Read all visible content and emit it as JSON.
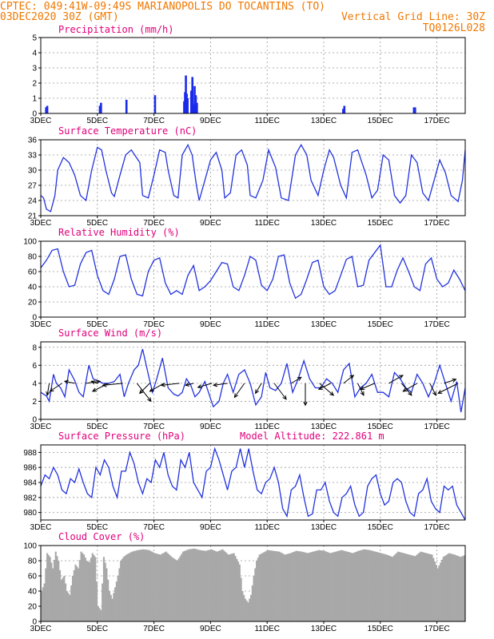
{
  "header": {
    "line1": "CPTEC:   049:41W-09:49S  MARIANOPOLIS DO TOCANTINS (TO)",
    "line2_left": "03DEC2020 30Z (GMT)",
    "line2_right": "Vertical Grid Line: 30Z",
    "line3_right": "TQ0126L028"
  },
  "colors": {
    "header": "#f07800",
    "title": "#e0007a",
    "curve": "#2233dd",
    "bars": "#1a2bea",
    "cloud": "#a8a8a8"
  },
  "x_axis": {
    "labels": [
      "3DEC",
      "5DEC",
      "7DEC",
      "9DEC",
      "11DEC",
      "13DEC",
      "15DEC",
      "17DEC"
    ],
    "label_days": [
      3,
      5,
      7,
      9,
      11,
      13,
      15,
      17
    ],
    "range_days": [
      3,
      18
    ]
  },
  "chart_data": [
    {
      "type": "bar",
      "title": "Precipitation (mm/h)",
      "ylim": [
        0,
        5
      ],
      "yticks": [
        0,
        1,
        2,
        3,
        4,
        5
      ],
      "grid": true,
      "x_days": [
        3.18,
        3.22,
        5.08,
        5.12,
        6.02,
        7.03,
        8.06,
        8.09,
        8.12,
        8.15,
        8.18,
        8.31,
        8.35,
        8.39,
        8.43,
        8.47,
        8.51,
        13.68,
        13.72,
        16.18,
        16.22
      ],
      "values": [
        0.4,
        0.5,
        0.5,
        0.7,
        0.9,
        1.2,
        0.8,
        1.4,
        2.5,
        1.3,
        1.0,
        1.5,
        2.4,
        0.6,
        1.8,
        1.2,
        0.7,
        0.3,
        0.5,
        0.4,
        0.4
      ]
    },
    {
      "type": "line",
      "title": "Surface Temperature (nC)",
      "ylim": [
        21,
        36
      ],
      "yticks": [
        21,
        24,
        27,
        30,
        33,
        36
      ],
      "grid": true,
      "x_days": [
        3.0,
        3.1,
        3.2,
        3.35,
        3.5,
        3.6,
        3.8,
        4.0,
        4.2,
        4.4,
        4.6,
        4.8,
        5.0,
        5.15,
        5.3,
        5.5,
        5.6,
        5.8,
        6.0,
        6.2,
        6.5,
        6.6,
        6.8,
        7.0,
        7.2,
        7.4,
        7.5,
        7.7,
        7.85,
        8.0,
        8.2,
        8.35,
        8.5,
        8.6,
        8.8,
        9.0,
        9.2,
        9.4,
        9.5,
        9.7,
        9.9,
        10.1,
        10.3,
        10.4,
        10.6,
        10.85,
        11.05,
        11.3,
        11.5,
        11.75,
        12.0,
        12.2,
        12.4,
        12.55,
        12.8,
        13.0,
        13.2,
        13.35,
        13.6,
        13.8,
        14.0,
        14.2,
        14.5,
        14.7,
        14.9,
        15.1,
        15.3,
        15.5,
        15.7,
        15.9,
        16.1,
        16.3,
        16.5,
        16.7,
        16.9,
        17.1,
        17.3,
        17.5,
        17.75,
        17.9,
        18.0
      ],
      "values": [
        25.0,
        24.5,
        22.3,
        21.8,
        25.0,
        30.0,
        32.5,
        31.5,
        29.0,
        25.0,
        24.0,
        30.0,
        34.5,
        34.0,
        30.0,
        25.5,
        24.8,
        29.0,
        33.0,
        34.0,
        31.5,
        25.0,
        24.5,
        29.0,
        34.0,
        33.5,
        30.0,
        25.0,
        24.5,
        33.0,
        35.0,
        33.0,
        27.0,
        24.0,
        28.0,
        32.0,
        33.5,
        30.0,
        24.5,
        25.5,
        33.0,
        34.0,
        31.0,
        25.0,
        24.5,
        28.0,
        34.0,
        30.5,
        24.5,
        24.0,
        33.0,
        35.0,
        33.0,
        28.0,
        25.0,
        30.0,
        34.0,
        32.5,
        27.0,
        24.5,
        33.5,
        34.0,
        29.0,
        24.5,
        26.0,
        33.0,
        32.0,
        25.0,
        23.5,
        25.0,
        33.0,
        31.5,
        25.5,
        24.0,
        28.0,
        32.0,
        29.5,
        25.0,
        23.8,
        28.0,
        34.0
      ]
    },
    {
      "type": "line",
      "title": "Relative Humidity (%)",
      "ylim": [
        0,
        100
      ],
      "yticks": [
        0,
        20,
        40,
        60,
        80,
        100
      ],
      "grid": true,
      "x_days": [
        3.0,
        3.2,
        3.4,
        3.6,
        3.8,
        4.0,
        4.2,
        4.4,
        4.6,
        4.8,
        5.0,
        5.2,
        5.4,
        5.6,
        5.8,
        6.0,
        6.2,
        6.4,
        6.6,
        6.8,
        7.0,
        7.2,
        7.4,
        7.6,
        7.8,
        8.0,
        8.2,
        8.4,
        8.6,
        8.8,
        9.0,
        9.2,
        9.4,
        9.6,
        9.8,
        10.0,
        10.2,
        10.4,
        10.6,
        10.8,
        11.0,
        11.2,
        11.4,
        11.6,
        11.8,
        12.0,
        12.2,
        12.4,
        12.6,
        12.8,
        13.0,
        13.2,
        13.4,
        13.6,
        13.8,
        14.0,
        14.2,
        14.4,
        14.6,
        14.8,
        15.0,
        15.2,
        15.4,
        15.6,
        15.8,
        16.0,
        16.2,
        16.4,
        16.6,
        16.8,
        17.0,
        17.2,
        17.4,
        17.6,
        17.8,
        18.0
      ],
      "values": [
        65,
        75,
        88,
        90,
        60,
        40,
        42,
        70,
        85,
        88,
        55,
        35,
        30,
        50,
        80,
        82,
        50,
        30,
        28,
        60,
        75,
        78,
        45,
        30,
        35,
        30,
        55,
        68,
        35,
        40,
        48,
        60,
        72,
        70,
        40,
        35,
        55,
        80,
        75,
        42,
        35,
        50,
        80,
        82,
        45,
        25,
        30,
        50,
        72,
        75,
        40,
        30,
        35,
        55,
        76,
        80,
        40,
        42,
        75,
        85,
        95,
        40,
        40,
        62,
        78,
        60,
        40,
        35,
        70,
        78,
        50,
        40,
        45,
        62,
        50,
        35
      ]
    },
    {
      "type": "line",
      "title": "Surface Wind (m/s)",
      "ylim": [
        0,
        8.6
      ],
      "yticks": [
        0,
        2,
        4,
        6,
        8
      ],
      "grid": true,
      "x_days": [
        3.0,
        3.2,
        3.3,
        3.45,
        3.55,
        3.7,
        3.85,
        4.0,
        4.2,
        4.35,
        4.5,
        4.7,
        4.85,
        5.0,
        5.2,
        5.4,
        5.6,
        5.8,
        5.95,
        6.1,
        6.3,
        6.45,
        6.6,
        6.8,
        6.95,
        7.1,
        7.3,
        7.5,
        7.7,
        7.85,
        8.0,
        8.15,
        8.3,
        8.45,
        8.6,
        8.8,
        9.0,
        9.1,
        9.3,
        9.45,
        9.6,
        9.8,
        10.0,
        10.2,
        10.4,
        10.6,
        10.8,
        10.95,
        11.1,
        11.3,
        11.5,
        11.7,
        11.9,
        12.1,
        12.3,
        12.5,
        12.7,
        12.9,
        13.1,
        13.3,
        13.5,
        13.7,
        13.9,
        14.1,
        14.3,
        14.5,
        14.7,
        14.9,
        15.1,
        15.3,
        15.5,
        15.7,
        15.9,
        16.1,
        16.3,
        16.5,
        16.7,
        16.9,
        17.1,
        17.3,
        17.5,
        17.7,
        17.85,
        18.0
      ],
      "values": [
        3.0,
        2.6,
        2.0,
        5.0,
        4.0,
        3.5,
        2.5,
        5.5,
        4.3,
        3.0,
        2.5,
        6.0,
        4.5,
        4.3,
        4.0,
        4.0,
        4.2,
        5.0,
        2.5,
        4.0,
        5.5,
        6.0,
        7.8,
        5.0,
        3.0,
        4.5,
        6.8,
        3.5,
        2.8,
        2.6,
        3.0,
        4.5,
        3.8,
        2.5,
        3.0,
        4.2,
        2.3,
        1.4,
        2.0,
        4.0,
        5.0,
        3.0,
        5.0,
        5.5,
        4.0,
        1.6,
        2.5,
        5.2,
        3.5,
        3.2,
        4.0,
        6.2,
        3.0,
        4.5,
        6.5,
        4.5,
        3.5,
        3.5,
        4.5,
        4.0,
        3.0,
        5.5,
        6.2,
        2.5,
        3.5,
        4.0,
        5.0,
        3.0,
        3.0,
        2.5,
        5.2,
        4.5,
        3.5,
        3.0,
        5.0,
        4.0,
        2.5,
        4.0,
        6.0,
        4.0,
        2.0,
        4.2,
        0.8,
        3.5
      ],
      "vector_x_days": [
        3.3,
        3.75,
        4.2,
        4.6,
        5.0,
        5.4,
        5.9,
        6.4,
        6.85,
        7.35,
        7.9,
        8.4,
        9.05,
        9.6,
        10.2,
        10.8,
        11.25,
        11.85,
        12.35,
        12.85,
        13.25,
        13.7,
        14.2,
        14.8,
        15.3,
        15.75,
        16.3,
        16.75,
        17.25,
        17.75
      ],
      "vector_u": [
        -0.5,
        -3.0,
        -2.5,
        3.5,
        -1.5,
        -4.0,
        -5.0,
        3.5,
        -2.5,
        -3.5,
        -4.5,
        -2.0,
        -3.5,
        -3.5,
        -2.5,
        -1.5,
        3.0,
        2.5,
        0.0,
        3.5,
        -3.0,
        2.5,
        1.5,
        -3.5,
        3.5,
        2.5,
        -3.5,
        1.5,
        3.0,
        -5.0
      ],
      "vector_v": [
        -3.0,
        -2.0,
        0.5,
        0.5,
        0.5,
        -2.0,
        -0.5,
        -4.5,
        -2.5,
        -2.0,
        -0.5,
        -0.5,
        -1.0,
        -0.5,
        -3.5,
        -2.5,
        -4.0,
        1.5,
        -5.5,
        -3.0,
        -1.5,
        2.0,
        -3.0,
        -1.5,
        2.0,
        -3.0,
        -2.0,
        -3.0,
        1.0,
        -2.5
      ]
    },
    {
      "type": "line",
      "title": "Surface Pressure (hPa)",
      "annotation": "Model Altitude: 222.861 m",
      "ylim": [
        979,
        989
      ],
      "yticks": [
        980,
        982,
        984,
        986,
        988
      ],
      "grid": true,
      "x_days": [
        3.0,
        3.15,
        3.3,
        3.45,
        3.6,
        3.75,
        3.9,
        4.05,
        4.2,
        4.35,
        4.5,
        4.65,
        4.8,
        4.95,
        5.1,
        5.25,
        5.4,
        5.55,
        5.7,
        5.85,
        6.0,
        6.15,
        6.3,
        6.45,
        6.6,
        6.75,
        6.9,
        7.05,
        7.2,
        7.35,
        7.5,
        7.65,
        7.8,
        7.95,
        8.1,
        8.25,
        8.4,
        8.55,
        8.7,
        8.85,
        9.0,
        9.15,
        9.3,
        9.45,
        9.6,
        9.75,
        9.9,
        10.05,
        10.2,
        10.35,
        10.5,
        10.65,
        10.8,
        10.95,
        11.1,
        11.25,
        11.4,
        11.55,
        11.7,
        11.85,
        12.0,
        12.15,
        12.3,
        12.45,
        12.6,
        12.75,
        12.9,
        13.05,
        13.2,
        13.35,
        13.5,
        13.65,
        13.8,
        13.95,
        14.1,
        14.25,
        14.4,
        14.55,
        14.7,
        14.85,
        15.0,
        15.15,
        15.3,
        15.45,
        15.6,
        15.75,
        15.9,
        16.05,
        16.2,
        16.35,
        16.5,
        16.65,
        16.8,
        16.95,
        17.1,
        17.25,
        17.4,
        17.55,
        17.7,
        17.85,
        18.0
      ],
      "values": [
        983.5,
        985.0,
        984.5,
        986.0,
        985.0,
        983.0,
        982.5,
        984.5,
        984.0,
        985.8,
        984.0,
        982.5,
        982.0,
        986.0,
        985.0,
        987.0,
        986.0,
        983.5,
        982.0,
        985.5,
        985.5,
        988.0,
        986.5,
        984.0,
        982.5,
        984.5,
        984.0,
        987.0,
        986.0,
        988.0,
        985.0,
        983.5,
        983.0,
        987.0,
        986.0,
        988.0,
        984.0,
        983.0,
        982.0,
        985.5,
        986.0,
        988.5,
        987.0,
        985.0,
        983.0,
        985.5,
        986.0,
        988.5,
        986.0,
        988.5,
        985.5,
        983.0,
        982.5,
        984.0,
        984.5,
        986.0,
        984.0,
        980.5,
        979.5,
        983.0,
        983.5,
        985.0,
        982.0,
        979.5,
        979.8,
        983.0,
        983.0,
        984.0,
        981.5,
        980.0,
        979.5,
        982.0,
        982.5,
        983.5,
        981.0,
        979.5,
        980.0,
        983.5,
        984.5,
        985.0,
        982.5,
        981.0,
        981.5,
        984.0,
        984.5,
        984.0,
        981.5,
        980.0,
        979.5,
        982.5,
        983.0,
        984.5,
        981.5,
        980.5,
        980.0,
        983.5,
        983.0,
        983.5,
        981.0,
        980.0,
        979.0
      ],
      "pressure_axis_note": ""
    },
    {
      "type": "area",
      "title": "Cloud Cover (%)",
      "ylim": [
        0,
        100
      ],
      "yticks": [
        0,
        20,
        40,
        60,
        80,
        100
      ],
      "grid": true,
      "x_days": [
        3.0,
        3.1,
        3.2,
        3.3,
        3.4,
        3.5,
        3.6,
        3.7,
        3.8,
        3.9,
        4.0,
        4.1,
        4.2,
        4.3,
        4.4,
        4.5,
        4.6,
        4.7,
        4.8,
        4.9,
        5.0,
        5.1,
        5.2,
        5.3,
        5.4,
        5.5,
        5.6,
        5.7,
        5.8,
        5.9,
        6.0,
        6.2,
        6.4,
        6.6,
        6.8,
        7.0,
        7.2,
        7.4,
        7.6,
        7.8,
        8.0,
        8.2,
        8.4,
        8.6,
        8.8,
        9.0,
        9.2,
        9.4,
        9.6,
        9.8,
        10.0,
        10.1,
        10.2,
        10.3,
        10.4,
        10.5,
        10.6,
        10.7,
        10.8,
        10.9,
        11.0,
        11.2,
        11.4,
        11.6,
        11.8,
        12.0,
        12.2,
        12.4,
        12.6,
        12.8,
        13.0,
        13.2,
        13.4,
        13.6,
        13.8,
        14.0,
        14.2,
        14.4,
        14.6,
        14.8,
        15.0,
        15.2,
        15.4,
        15.6,
        15.8,
        16.0,
        16.2,
        16.4,
        16.6,
        16.8,
        17.0,
        17.2,
        17.4,
        17.6,
        17.8,
        18.0
      ],
      "values": [
        40,
        50,
        90,
        85,
        70,
        92,
        80,
        55,
        60,
        40,
        35,
        60,
        75,
        70,
        92,
        88,
        80,
        78,
        90,
        85,
        20,
        15,
        85,
        70,
        40,
        30,
        45,
        60,
        80,
        85,
        88,
        92,
        94,
        95,
        94,
        90,
        88,
        92,
        85,
        80,
        92,
        95,
        96,
        94,
        93,
        95,
        92,
        95,
        88,
        90,
        75,
        40,
        30,
        25,
        35,
        60,
        80,
        88,
        90,
        92,
        94,
        93,
        92,
        88,
        90,
        93,
        92,
        90,
        92,
        94,
        93,
        90,
        92,
        94,
        92,
        90,
        93,
        95,
        94,
        92,
        90,
        88,
        85,
        92,
        90,
        88,
        86,
        92,
        90,
        88,
        70,
        85,
        90,
        88,
        85,
        88
      ]
    }
  ]
}
